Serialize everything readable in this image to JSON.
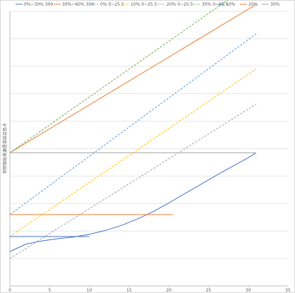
{
  "chart_data": {
    "type": "line",
    "title": "",
    "xlabel": "",
    "ylabel": "何项指标来源是否结合色卡",
    "xlim": [
      0,
      35
    ],
    "xticks": [
      0,
      5,
      10,
      15,
      20,
      25,
      30,
      35
    ],
    "ylim": [
      0,
      100
    ],
    "grid": "horizontal",
    "legend_position": "top",
    "series": [
      {
        "name": "0%~30% 300",
        "color": "#4472C4",
        "dash": "solid",
        "x": [
          0,
          2,
          4,
          6,
          8,
          10,
          12,
          14,
          16,
          18,
          20,
          22,
          24,
          26,
          28,
          30,
          31
        ],
        "y": [
          12.5,
          15.2,
          16.4,
          17.2,
          17.8,
          18.8,
          20.2,
          22.0,
          24.3,
          27.0,
          30.2,
          33.6,
          36.9,
          40.3,
          43.5,
          46.7,
          48.5
        ]
      },
      {
        "name": "30%~60% 300",
        "color": "#ED7D31",
        "dash": "solid",
        "x": [
          0,
          31
        ],
        "y": [
          48.5,
          102.5
        ]
      },
      {
        "name": "0% 0~25.5",
        "color": "#5B9BD5",
        "dash": "dash",
        "x": [
          0,
          31
        ],
        "y": [
          26.0,
          91.8
        ]
      },
      {
        "name": "10% 0~25.5",
        "color": "#FFC000",
        "dash": "dash",
        "x": [
          0,
          31
        ],
        "y": [
          18.0,
          79.0
        ]
      },
      {
        "name": "20% 0~25.5",
        "color": "#A5A5A5",
        "dash": "dash",
        "x": [
          0,
          31
        ],
        "y": [
          10.0,
          66.2
        ]
      },
      {
        "name": "30% 0~25.5",
        "color": "#70AD47",
        "dash": "dash",
        "x": [
          0,
          31
        ],
        "y": [
          48.5,
          111.4
        ]
      },
      {
        "name": "10%",
        "color": "#4472C4",
        "dash": "solid",
        "x": [
          0,
          10
        ],
        "y": [
          18.0,
          18.0
        ]
      },
      {
        "name": "20%",
        "color": "#ED7D31",
        "dash": "solid",
        "x": [
          0,
          20.5
        ],
        "y": [
          26.0,
          26.0
        ]
      },
      {
        "name": "30%",
        "color": "#A5A5A5",
        "dash": "solid",
        "x": [
          0,
          31
        ],
        "y": [
          48.5,
          48.5
        ]
      }
    ]
  }
}
